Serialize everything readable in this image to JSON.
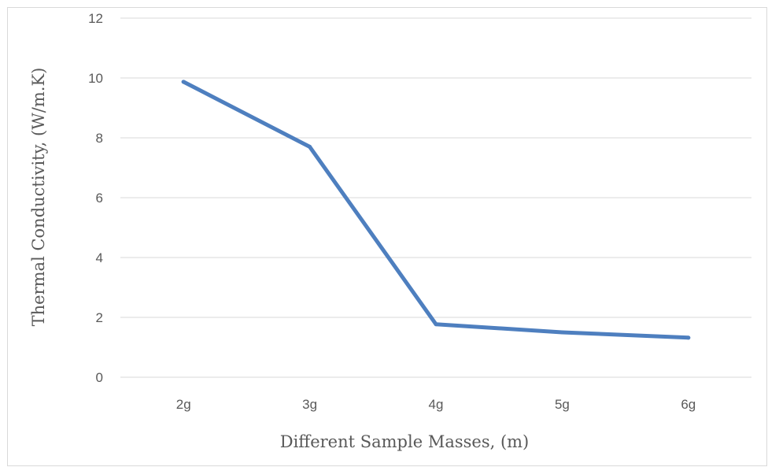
{
  "chart_data": {
    "type": "line",
    "title": "",
    "xlabel": "Different Sample Masses, (m)",
    "ylabel": "Thermal Conductivity, (W/m.K)",
    "categories": [
      "2g",
      "3g",
      "4g",
      "5g",
      "6g"
    ],
    "series": [
      {
        "values": [
          9.87,
          7.7,
          1.77,
          1.5,
          1.32
        ]
      }
    ],
    "ylim": [
      0,
      12
    ],
    "yticks": [
      0,
      2,
      4,
      6,
      8,
      10,
      12
    ],
    "grid": "horizontal",
    "legend": "none",
    "colors": {
      "line": "#4e7fbf",
      "grid": "#d9d9d9",
      "text": "#595959"
    }
  }
}
